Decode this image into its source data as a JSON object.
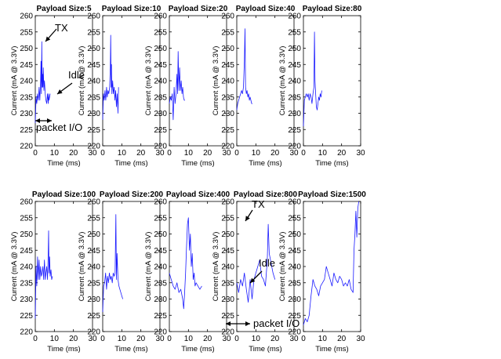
{
  "chart_data": {
    "type": "line",
    "xlabel": "Time (ms)",
    "ylabel": "Current (mA @ 3.3V)",
    "xlim": [
      0,
      30
    ],
    "ylim": [
      220,
      260
    ],
    "xticks": [
      0,
      10,
      20,
      30
    ],
    "yticks": [
      220,
      225,
      230,
      235,
      240,
      245,
      250,
      255,
      260
    ],
    "grid": false,
    "panels": [
      {
        "title": "Payload Size:5",
        "x": [
          0,
          0.4,
          0.8,
          1.2,
          1.6,
          2.0,
          2.4,
          2.8,
          3.0,
          3.2,
          3.4,
          3.6,
          3.8,
          4.0,
          4.2,
          4.5,
          4.8,
          5.2,
          5.6,
          6.0,
          6.4,
          6.8,
          7.0,
          7.2,
          7.5,
          7.8
        ],
        "y": [
          227,
          235,
          233,
          236,
          234,
          238,
          234,
          240,
          246,
          236,
          252,
          238,
          242,
          238,
          244,
          237,
          240,
          236,
          234,
          233,
          236,
          233,
          236,
          234,
          235,
          236
        ]
      },
      {
        "title": "Payload Size:10",
        "x": [
          0,
          0.4,
          0.8,
          1.2,
          1.6,
          2.0,
          2.4,
          2.8,
          3.2,
          3.6,
          4.0,
          4.2,
          4.4,
          4.6,
          4.8,
          5.2,
          5.6,
          6.0,
          6.4,
          6.8,
          7.2,
          7.6,
          8.0,
          8.3
        ],
        "y": [
          228,
          236,
          234,
          237,
          234,
          238,
          235,
          237,
          236,
          238,
          244,
          254,
          238,
          245,
          236,
          240,
          236,
          238,
          234,
          237,
          232,
          236,
          230,
          238
        ]
      },
      {
        "title": "Payload Size:20",
        "x": [
          0,
          0.5,
          1.0,
          1.5,
          2.0,
          2.5,
          3.0,
          3.5,
          4.0,
          4.3,
          4.6,
          5.0,
          5.4,
          5.8,
          6.2,
          6.6,
          7.0,
          7.4,
          7.8,
          8.2
        ],
        "y": [
          233,
          235,
          234,
          236,
          228,
          238,
          233,
          236,
          242,
          236,
          249,
          237,
          244,
          237,
          240,
          236,
          238,
          235,
          234,
          234
        ]
      },
      {
        "title": "Payload Size:40",
        "x": [
          0,
          0.5,
          1.0,
          1.5,
          2.0,
          2.5,
          3.0,
          3.5,
          4.0,
          4.3,
          4.6,
          5.0,
          5.4,
          5.8,
          6.2,
          6.6,
          7.0,
          7.4,
          7.8,
          8.2
        ],
        "y": [
          231,
          233,
          234,
          235,
          236,
          237,
          236,
          238,
          246,
          256,
          238,
          236,
          237,
          235,
          236,
          234,
          235,
          234,
          233,
          233
        ]
      },
      {
        "title": "Payload Size:80",
        "x": [
          0,
          0.5,
          1.0,
          1.5,
          2.0,
          2.5,
          3.0,
          3.5,
          4.0,
          4.5,
          5.0,
          5.5,
          5.8,
          6.1,
          6.4,
          6.8,
          7.2,
          7.6,
          8.0,
          8.4,
          8.8,
          9.2,
          9.6
        ],
        "y": [
          226,
          234,
          235,
          236,
          235,
          236,
          234,
          236,
          235,
          233,
          236,
          238,
          255,
          240,
          236,
          232,
          231,
          233,
          235,
          234,
          236,
          235,
          237
        ]
      },
      {
        "title": "Payload Size:100",
        "x": [
          0,
          0.4,
          0.8,
          1.2,
          1.6,
          2.0,
          2.4,
          2.8,
          3.2,
          3.6,
          4.0,
          4.4,
          4.8,
          5.2,
          5.6,
          6.0,
          6.4,
          6.8,
          7.0,
          7.2,
          7.5,
          7.8,
          8.2,
          8.6,
          9.0
        ],
        "y": [
          224,
          240,
          234,
          243,
          236,
          242,
          236,
          240,
          237,
          238,
          240,
          236,
          242,
          236,
          238,
          240,
          236,
          244,
          251,
          238,
          243,
          237,
          239,
          236,
          237
        ]
      },
      {
        "title": "Payload Size:200",
        "x": [
          0,
          0.5,
          1.0,
          1.5,
          2.0,
          2.5,
          3.0,
          3.5,
          4.0,
          4.5,
          5.0,
          5.5,
          6.0,
          6.5,
          6.9,
          7.2,
          7.5,
          8.0,
          8.5,
          9.0,
          9.5,
          10.0,
          10.5
        ],
        "y": [
          226,
          234,
          235,
          238,
          233,
          237,
          235,
          238,
          236,
          237,
          235,
          238,
          237,
          238,
          256,
          236,
          244,
          236,
          234,
          233,
          232,
          231,
          230
        ]
      },
      {
        "title": "Payload Size:400",
        "x": [
          0,
          1,
          2,
          3,
          4,
          5,
          6,
          7,
          7.5,
          8,
          8.5,
          9,
          9.5,
          10,
          10.5,
          11,
          11.5,
          12,
          12.5,
          13,
          13.5,
          14,
          15,
          16,
          17
        ],
        "y": [
          238,
          236,
          234,
          233,
          235,
          232,
          233,
          230,
          227,
          232,
          238,
          246,
          253,
          255,
          245,
          250,
          240,
          244,
          236,
          238,
          234,
          235,
          234,
          233,
          234
        ]
      },
      {
        "title": "Payload Size:800",
        "x": [
          0,
          1,
          2,
          3,
          4,
          5,
          6,
          7,
          8,
          9,
          10,
          11,
          12,
          13,
          14,
          15,
          16,
          16.5,
          17,
          18,
          19,
          20
        ],
        "y": [
          235,
          232,
          236,
          234,
          238,
          233,
          229,
          236,
          230,
          236,
          238,
          240,
          242,
          237,
          236,
          234,
          242,
          253,
          244,
          241,
          238,
          236
        ]
      },
      {
        "title": "Payload Size:1500",
        "x": [
          0,
          1,
          2,
          3,
          4,
          5,
          6,
          7,
          8,
          9,
          10,
          11,
          12,
          13,
          14,
          15,
          16,
          17,
          18,
          19,
          20,
          21,
          22,
          23,
          24,
          25,
          26,
          26.5,
          27,
          27.5,
          28,
          28.5,
          29
        ],
        "y": [
          222,
          224,
          223,
          225,
          231,
          236,
          234,
          233,
          231,
          234,
          235,
          236,
          240,
          238,
          236,
          234,
          238,
          236,
          235,
          237,
          236,
          234,
          235,
          234,
          236,
          233,
          232,
          245,
          250,
          257,
          249,
          258,
          260
        ]
      }
    ],
    "annotations": [
      {
        "panel": 0,
        "text": "TX"
      },
      {
        "panel": 0,
        "text": "Idle"
      },
      {
        "panel": 0,
        "text": "packet I/O"
      },
      {
        "panel": 7,
        "text": "TX"
      },
      {
        "panel": 7,
        "text": "Idle"
      },
      {
        "panel": 7,
        "text": "packet I/O"
      }
    ]
  }
}
